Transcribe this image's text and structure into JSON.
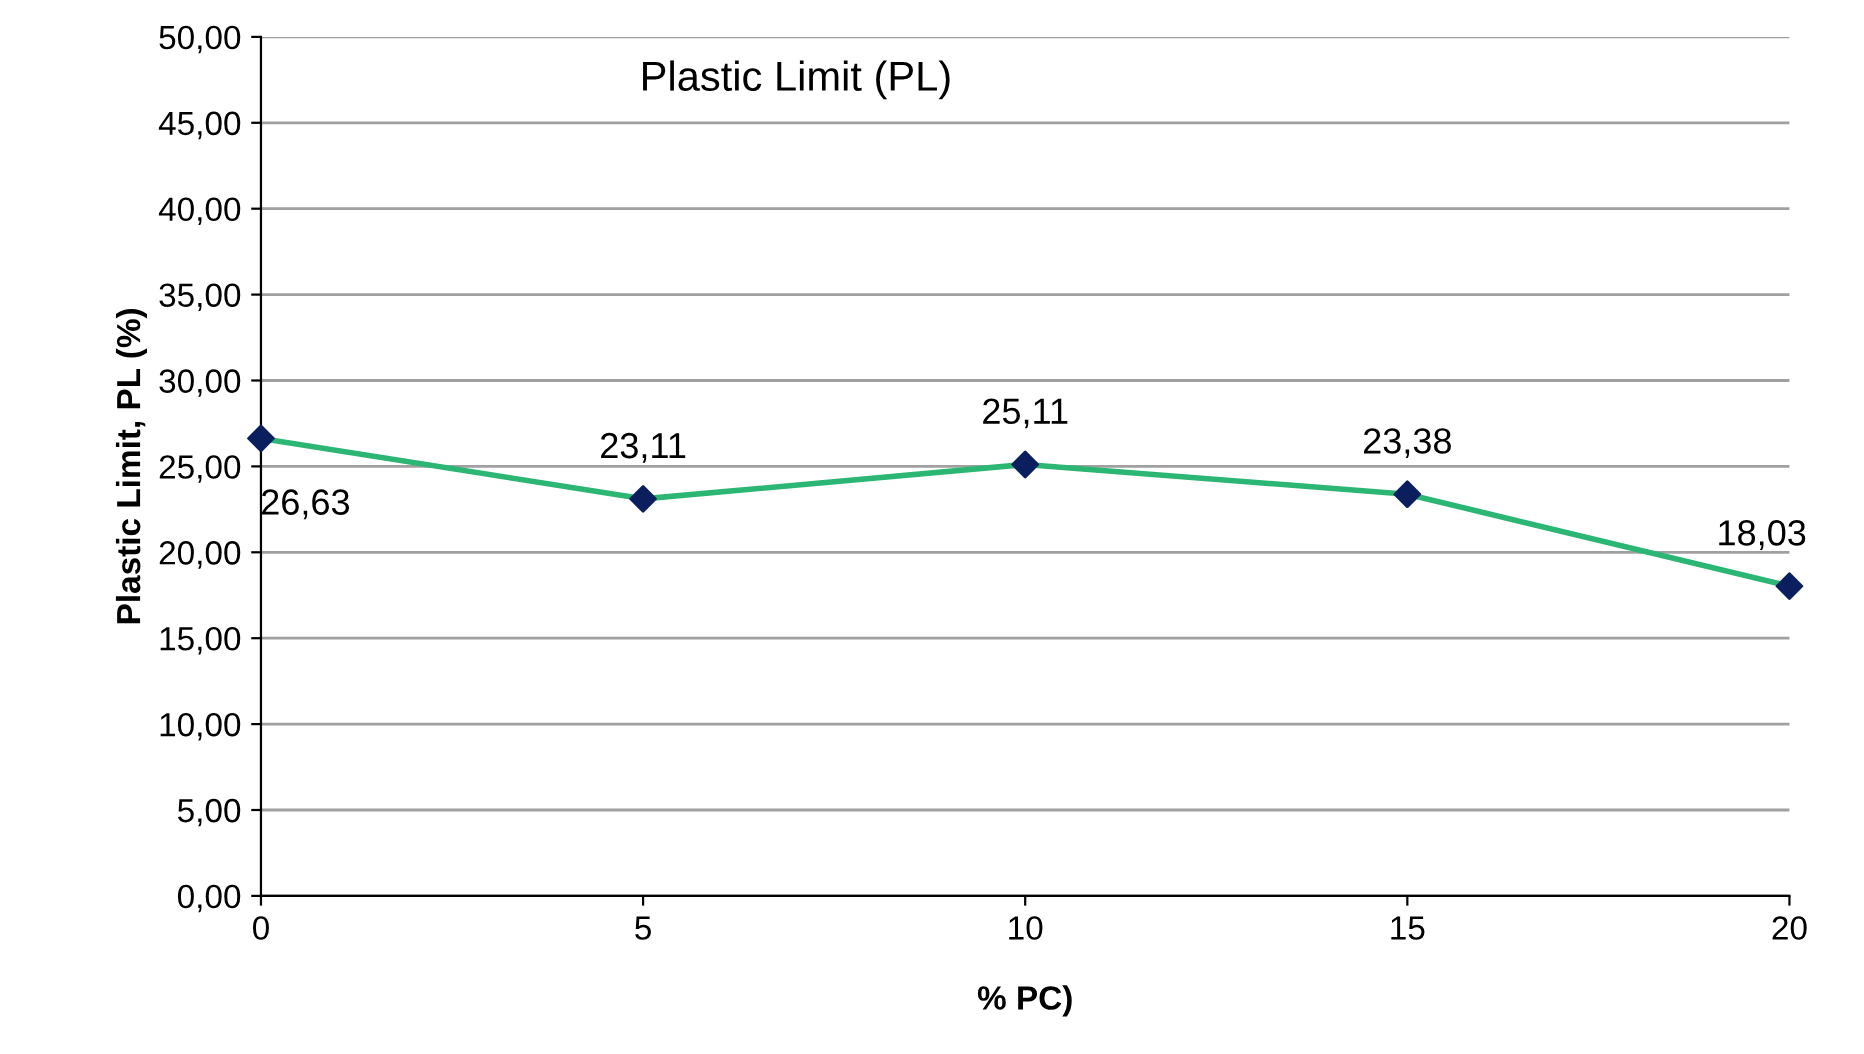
{
  "chart_data": {
    "type": "line",
    "title": "Plastic Limit (PL)",
    "xlabel": "% PC)",
    "ylabel": "Plastic Limit, PL (%)",
    "x": [
      0,
      5,
      10,
      15,
      20
    ],
    "series": [
      {
        "color": "#2bb673",
        "colors": [
          "#0b1f5e",
          "#0b1f5e",
          "#0b1f5e",
          "#0b1f5e",
          "#0b1f5e"
        ],
        "values": [
          26.63,
          23.11,
          25.11,
          23.38,
          18.03
        ],
        "value_labels": [
          "26,63",
          "23,11",
          "25,11",
          "23,38",
          "18,03"
        ]
      }
    ],
    "xlim": [
      0,
      20
    ],
    "xticks": [
      0,
      5,
      10,
      15,
      20
    ],
    "ylim": [
      0,
      50
    ],
    "yticks": [
      {
        "value": 0,
        "label": "0,00"
      },
      {
        "value": 5,
        "label": "5,00"
      },
      {
        "value": 10,
        "label": "10,00"
      },
      {
        "value": 15,
        "label": "15,00"
      },
      {
        "value": 20,
        "label": "20,00"
      },
      {
        "value": 25,
        "label": "25,00"
      },
      {
        "value": 30,
        "label": "30,00"
      },
      {
        "value": 35,
        "label": "35,00"
      },
      {
        "value": 40,
        "label": "40,00"
      },
      {
        "value": 45,
        "label": "45,00"
      },
      {
        "value": 50,
        "label": "50,00"
      }
    ],
    "grid": "y",
    "marker": "diamond",
    "line_style": "solid",
    "legend": false
  }
}
